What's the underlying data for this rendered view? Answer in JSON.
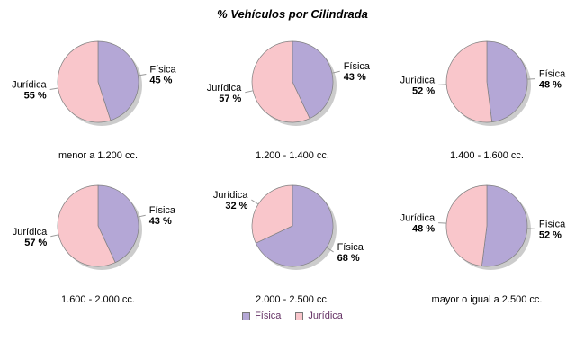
{
  "title": "% Vehículos por Cilindrada",
  "value_suffix": " %",
  "series_colors": [
    "#b4a7d6",
    "#f9c6cb"
  ],
  "slice_stroke_color": "#7f7f7f",
  "leader_line_color": "#999999",
  "shadow_color": "#b0b0b0",
  "legend": {
    "position": "bottom",
    "text_color": "#663366",
    "items": [
      {
        "label": "Física",
        "color": "#b4a7d6"
      },
      {
        "label": "Jurídica",
        "color": "#f9c6cb"
      }
    ]
  },
  "chart_data": [
    {
      "type": "pie",
      "category": "menor a 1.200 cc.",
      "labels": [
        "Física",
        "Jurídica"
      ],
      "values": [
        45,
        55
      ]
    },
    {
      "type": "pie",
      "category": "1.200 - 1.400 cc.",
      "labels": [
        "Física",
        "Jurídica"
      ],
      "values": [
        43,
        57
      ]
    },
    {
      "type": "pie",
      "category": "1.400 - 1.600 cc.",
      "labels": [
        "Física",
        "Jurídica"
      ],
      "values": [
        48,
        52
      ]
    },
    {
      "type": "pie",
      "category": "1.600 - 2.000 cc.",
      "labels": [
        "Física",
        "Jurídica"
      ],
      "values": [
        43,
        57
      ]
    },
    {
      "type": "pie",
      "category": "2.000 - 2.500 cc.",
      "labels": [
        "Física",
        "Jurídica"
      ],
      "values": [
        68,
        32
      ]
    },
    {
      "type": "pie",
      "category": "mayor o igual a 2.500 cc.",
      "labels": [
        "Física",
        "Jurídica"
      ],
      "values": [
        52,
        48
      ]
    }
  ]
}
